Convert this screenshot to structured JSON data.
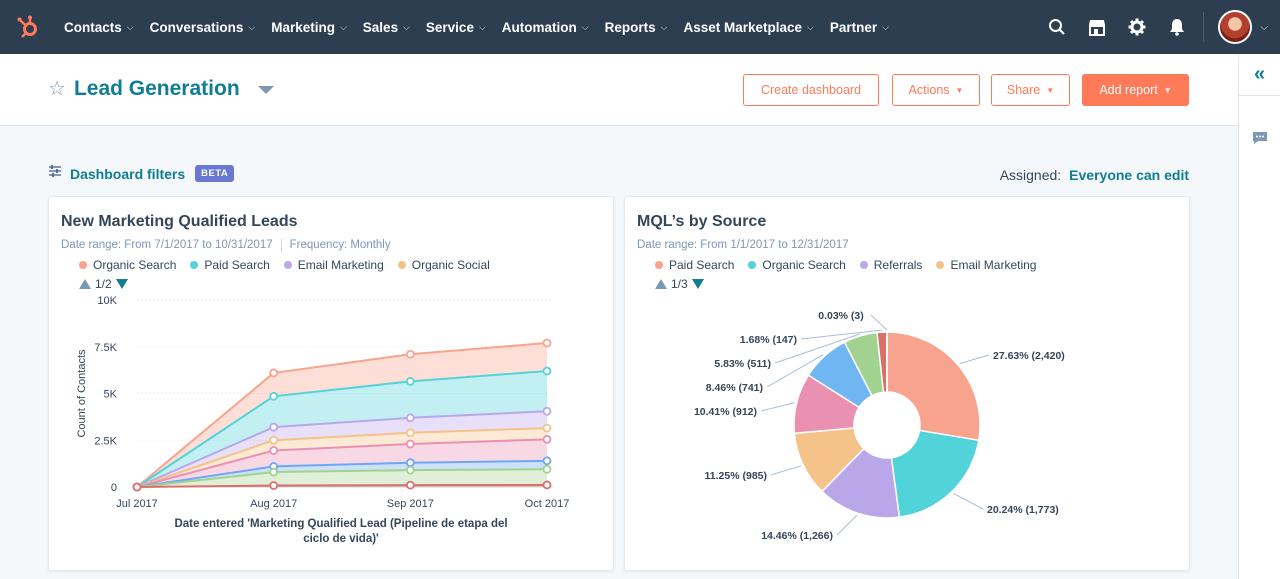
{
  "nav": {
    "items": [
      {
        "label": "Contacts"
      },
      {
        "label": "Conversations"
      },
      {
        "label": "Marketing"
      },
      {
        "label": "Sales"
      },
      {
        "label": "Service"
      },
      {
        "label": "Automation"
      },
      {
        "label": "Reports"
      },
      {
        "label": "Asset Marketplace"
      },
      {
        "label": "Partner"
      }
    ],
    "chevron": "⌵",
    "icons": [
      "hubspot-logo-icon",
      "search-icon",
      "marketplace-icon",
      "gear-icon",
      "bell-icon",
      "avatar"
    ]
  },
  "header": {
    "title": "Lead Generation",
    "buttons": {
      "create_dashboard": "Create dashboard",
      "actions": "Actions",
      "share": "Share",
      "add_report": "Add report"
    }
  },
  "filters": {
    "label": "Dashboard filters",
    "badge": "BETA",
    "assigned_label": "Assigned:",
    "assigned_value": "Everyone can edit"
  },
  "colors": {
    "orange": "#ff7a59",
    "teal": "#0f7d94",
    "organic_search": "#f8a38d",
    "paid_search": "#51d3d9",
    "email_marketing": "#b9a7ea",
    "organic_social": "#f5c28a",
    "referrals": "#b9a7ea"
  },
  "card1": {
    "title": "New Marketing Qualified Leads",
    "date_range": "Date range: From 7/1/2017 to 10/31/2017",
    "frequency": "Frequency: Monthly",
    "legend": [
      "Organic Search",
      "Paid Search",
      "Email Marketing",
      "Organic Social"
    ],
    "pager": "1/2"
  },
  "card2": {
    "title": "MQL’s by Source",
    "date_range": "Date range: From 1/1/2017 to 12/31/2017",
    "legend": [
      "Paid Search",
      "Organic Search",
      "Referrals",
      "Email Marketing"
    ],
    "pager": "1/3"
  },
  "chart_data": [
    {
      "type": "area",
      "title": "New Marketing Qualified Leads",
      "xlabel": "Date entered 'Marketing Qualified Lead (Pipeline de etapa del ciclo de vida)'",
      "ylabel": "Count of Contacts",
      "categories": [
        "Jul 2017",
        "Aug 2017",
        "Sep 2017",
        "Oct 2017"
      ],
      "ylim": [
        0,
        10000
      ],
      "yticks": [
        "0",
        "2.5K",
        "5K",
        "7.5K",
        "10K"
      ],
      "series": [
        {
          "name": "Organic Search",
          "color": "#f8a38d",
          "values": [
            0,
            6100,
            7100,
            7700
          ]
        },
        {
          "name": "Paid Search",
          "color": "#51d3d9",
          "values": [
            0,
            4850,
            5650,
            6200
          ]
        },
        {
          "name": "Email Marketing",
          "color": "#b9a7ea",
          "values": [
            0,
            3200,
            3700,
            4050
          ]
        },
        {
          "name": "Organic Social",
          "color": "#f5c28a",
          "values": [
            0,
            2500,
            2900,
            3150
          ]
        },
        {
          "color": "#ea90b1",
          "values": [
            0,
            1950,
            2300,
            2550
          ]
        },
        {
          "color": "#6fa8f2",
          "values": [
            0,
            1100,
            1300,
            1400
          ]
        },
        {
          "color": "#a2d28f",
          "values": [
            0,
            800,
            900,
            950
          ]
        },
        {
          "color": "#d9716a",
          "values": [
            0,
            80,
            100,
            110
          ]
        }
      ],
      "legend": "top",
      "grid": true
    },
    {
      "type": "pie",
      "title": "MQL’s by Source",
      "slices": [
        {
          "label": "27.63% (2,420)",
          "name": "Paid Search",
          "value": 2420,
          "color": "#f8a38d"
        },
        {
          "label": "20.24% (1,773)",
          "name": "Organic Search",
          "value": 1773,
          "color": "#51d3d9"
        },
        {
          "label": "14.46% (1,266)",
          "name": "Referrals",
          "value": 1266,
          "color": "#b9a7ea"
        },
        {
          "label": "11.25% (985)",
          "name": "Email Marketing",
          "value": 985,
          "color": "#f5c28a"
        },
        {
          "label": "10.41% (912)",
          "value": 912,
          "color": "#ea90b1"
        },
        {
          "label": "8.46% (741)",
          "value": 741,
          "color": "#6fb6f2"
        },
        {
          "label": "5.83% (511)",
          "value": 511,
          "color": "#a2d28f"
        },
        {
          "label": "1.68% (147)",
          "value": 147,
          "color": "#d9716a"
        },
        {
          "label": "0.03% (3)",
          "value": 3,
          "color": "#555555"
        }
      ],
      "donut": true
    }
  ]
}
